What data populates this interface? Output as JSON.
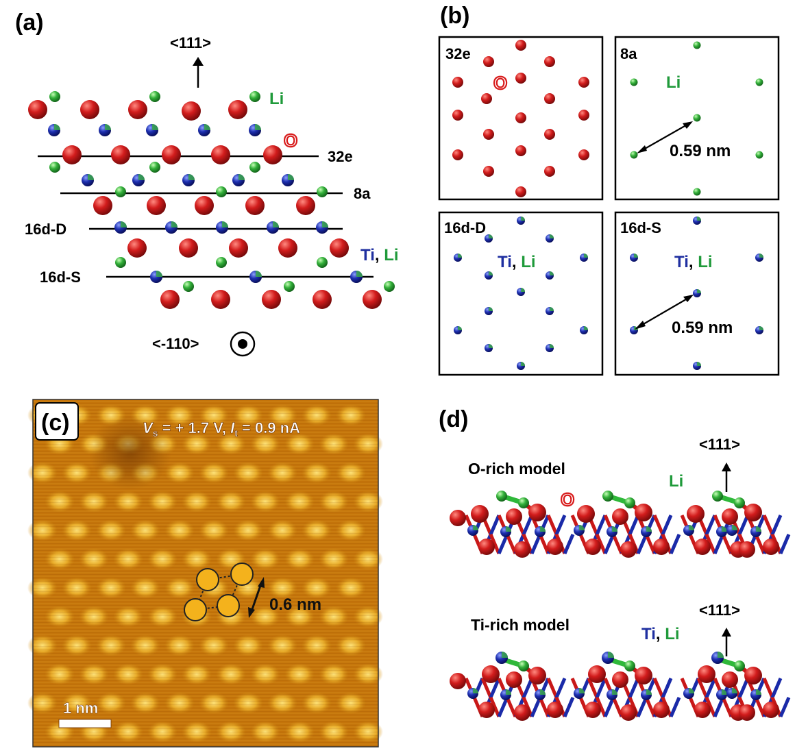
{
  "colors": {
    "oxygen": "#c8181c",
    "lithium": "#2fa83a",
    "titanium": "#1a2aa8",
    "li_label": "#1f9a3a",
    "ti_label": "#1f2fa0",
    "o_label": "#d81b1b",
    "stm_base": "#c4740a",
    "stm_spot": "#f2c23a",
    "marker_fill": "#f4b21c"
  },
  "panel_a": {
    "tag": "(a)",
    "direction_up": "<111>",
    "direction_out": "<-110>",
    "label_li": "Li",
    "label_o": "O",
    "label_ti": "Ti",
    "label_comma": ", ",
    "label_li2": "Li",
    "layers": [
      "32e",
      "8a",
      "16d-D",
      "16d-S"
    ]
  },
  "panel_b": {
    "tag": "(b)",
    "box_32e": {
      "title": "32e",
      "label_o": "O"
    },
    "box_8a": {
      "title": "8a",
      "label_li": "Li",
      "distance": "0.59 nm"
    },
    "box_16dD": {
      "title": "16d-D",
      "label_ti": "Ti",
      "label_comma": ", ",
      "label_li": "Li"
    },
    "box_16dS": {
      "title": "16d-S",
      "label_ti": "Ti",
      "label_comma": ", ",
      "label_li": "Li",
      "distance": "0.59 nm"
    }
  },
  "panel_c": {
    "tag": "(c)",
    "bias_symbol": "V",
    "bias_sub": "s",
    "bias_value": " = + 1.7 V, ",
    "current_symbol": "I",
    "current_sub": "t",
    "current_value": " = 0.9 nA",
    "distance": "0.6 nm",
    "scale_bar": "1 nm"
  },
  "panel_d": {
    "tag": "(d)",
    "model1_title": "O-rich model",
    "model1_label_li": "Li",
    "model1_label_o": "O",
    "model1_direction": "<111>",
    "model2_title": "Ti-rich model",
    "model2_label_ti": "Ti",
    "model2_label_comma": ", ",
    "model2_label_li": "Li",
    "model2_direction": "<111>"
  }
}
